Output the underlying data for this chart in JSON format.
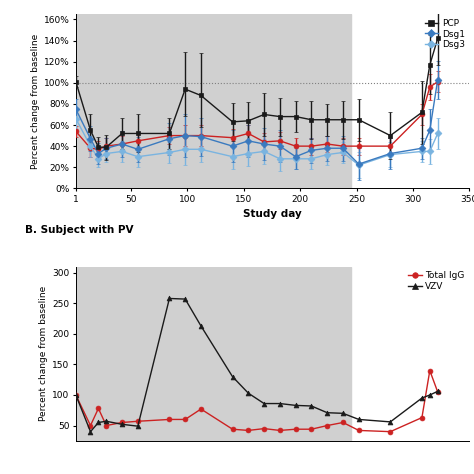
{
  "panel_A": {
    "ylabel": "Percent change from baseline",
    "xlabel": "Study day",
    "xlim": [
      1,
      350
    ],
    "ylim": [
      0,
      165
    ],
    "yticks": [
      0,
      20,
      40,
      60,
      80,
      100,
      120,
      140,
      160
    ],
    "ytick_labels": [
      "0%",
      "20%",
      "40%",
      "60%",
      "80%",
      "100%",
      "120%",
      "140%",
      "160%"
    ],
    "xticks": [
      1,
      50,
      100,
      150,
      200,
      250,
      300,
      350
    ],
    "gray_start": 1,
    "gray_end": 245,
    "hline_y": 100,
    "series": {
      "PCP": {
        "color": "#1a1a1a",
        "marker": "s",
        "x": [
          1,
          14,
          21,
          28,
          42,
          56,
          84,
          98,
          112,
          140,
          154,
          168,
          182,
          196,
          210,
          224,
          238,
          252,
          280,
          308,
          315,
          322
        ],
        "y": [
          101,
          55,
          39,
          39,
          52,
          52,
          52,
          94,
          88,
          63,
          64,
          70,
          68,
          68,
          65,
          65,
          65,
          65,
          50,
          72,
          117,
          142
        ],
        "yerr_lo": [
          5,
          15,
          10,
          12,
          15,
          18,
          15,
          25,
          30,
          18,
          18,
          20,
          18,
          15,
          18,
          15,
          18,
          20,
          22,
          30,
          28,
          25
        ],
        "yerr_hi": [
          5,
          15,
          10,
          12,
          15,
          18,
          15,
          35,
          40,
          18,
          18,
          20,
          18,
          15,
          18,
          15,
          18,
          20,
          22,
          30,
          28,
          25
        ]
      },
      "Dsg1": {
        "color": "#3a7abf",
        "marker": "D",
        "x": [
          1,
          14,
          21,
          28,
          42,
          56,
          84,
          98,
          112,
          140,
          154,
          168,
          182,
          196,
          210,
          224,
          238,
          252,
          280,
          308,
          315,
          322
        ],
        "y": [
          75,
          47,
          33,
          38,
          42,
          37,
          47,
          50,
          49,
          40,
          45,
          42,
          40,
          30,
          36,
          38,
          38,
          23,
          33,
          38,
          55,
          103
        ],
        "yerr_lo": [
          10,
          12,
          10,
          10,
          12,
          12,
          15,
          20,
          18,
          15,
          15,
          15,
          15,
          12,
          12,
          12,
          12,
          15,
          15,
          10,
          20,
          18
        ],
        "yerr_hi": [
          10,
          12,
          10,
          10,
          12,
          12,
          15,
          20,
          18,
          15,
          15,
          15,
          15,
          12,
          12,
          12,
          12,
          15,
          15,
          10,
          20,
          18
        ]
      },
      "Dsg3": {
        "color": "#7ab4e0",
        "marker": "D",
        "x": [
          1,
          14,
          21,
          28,
          42,
          56,
          84,
          98,
          112,
          140,
          154,
          168,
          182,
          196,
          210,
          224,
          238,
          252,
          280,
          308,
          315,
          322
        ],
        "y": [
          66,
          40,
          28,
          33,
          35,
          30,
          34,
          37,
          37,
          30,
          33,
          35,
          28,
          28,
          28,
          32,
          34,
          22,
          32,
          35,
          35,
          52
        ],
        "yerr_lo": [
          10,
          10,
          8,
          8,
          10,
          10,
          10,
          15,
          12,
          12,
          12,
          12,
          12,
          10,
          10,
          10,
          10,
          12,
          12,
          10,
          12,
          15
        ],
        "yerr_hi": [
          10,
          10,
          8,
          8,
          10,
          10,
          10,
          15,
          12,
          12,
          12,
          12,
          12,
          10,
          10,
          10,
          10,
          12,
          12,
          10,
          12,
          15
        ]
      },
      "Total_IgG": {
        "color": "#cc2222",
        "marker": "o",
        "x": [
          1,
          14,
          21,
          28,
          42,
          56,
          84,
          98,
          112,
          140,
          154,
          168,
          182,
          196,
          210,
          224,
          238,
          252,
          280,
          308,
          315,
          322
        ],
        "y": [
          54,
          38,
          37,
          40,
          42,
          45,
          50,
          50,
          50,
          48,
          52,
          44,
          45,
          40,
          40,
          42,
          40,
          40,
          40,
          70,
          96,
          101
        ],
        "yerr_lo": [
          5,
          8,
          8,
          8,
          8,
          8,
          8,
          10,
          10,
          8,
          8,
          8,
          8,
          8,
          8,
          8,
          8,
          8,
          8,
          10,
          12,
          10
        ],
        "yerr_hi": [
          5,
          8,
          8,
          8,
          8,
          8,
          8,
          10,
          10,
          8,
          8,
          8,
          8,
          8,
          8,
          8,
          8,
          8,
          8,
          10,
          12,
          10
        ]
      }
    },
    "legend": [
      {
        "label": "PCP",
        "color": "#1a1a1a",
        "marker": "s"
      },
      {
        "label": "Dsg1",
        "color": "#3a7abf",
        "marker": "D"
      },
      {
        "label": "Dsg3",
        "color": "#7ab4e0",
        "marker": "D"
      }
    ]
  },
  "panel_B": {
    "title": "B. Subject with PV",
    "ylabel": "Percent change from baseline",
    "xlim": [
      1,
      350
    ],
    "ylim": [
      25,
      310
    ],
    "yticks": [
      50,
      100,
      150,
      200,
      250,
      300
    ],
    "ytick_labels": [
      "50",
      "100",
      "150",
      "200",
      "250",
      "300"
    ],
    "gray_start": 1,
    "gray_end": 245,
    "series": {
      "Total_IgG": {
        "color": "#cc2222",
        "marker": "o",
        "x": [
          1,
          14,
          21,
          28,
          42,
          56,
          84,
          98,
          112,
          140,
          154,
          168,
          182,
          196,
          210,
          224,
          238,
          252,
          280,
          308,
          315,
          322
        ],
        "y": [
          100,
          50,
          78,
          50,
          55,
          57,
          60,
          60,
          77,
          44,
          42,
          45,
          42,
          44,
          44,
          50,
          55,
          42,
          40,
          63,
          140,
          105
        ]
      },
      "VZV": {
        "color": "#1a1a1a",
        "marker": "^",
        "x": [
          1,
          14,
          21,
          28,
          42,
          56,
          84,
          98,
          112,
          140,
          154,
          168,
          182,
          196,
          210,
          224,
          238,
          252,
          280,
          308,
          315,
          322
        ],
        "y": [
          100,
          40,
          55,
          57,
          52,
          49,
          258,
          257,
          213,
          130,
          103,
          86,
          86,
          83,
          82,
          71,
          70,
          60,
          56,
          95,
          100,
          106
        ]
      }
    },
    "legend": [
      {
        "label": "Total IgG",
        "color": "#cc2222",
        "marker": "o"
      },
      {
        "label": "VZV",
        "color": "#1a1a1a",
        "marker": "^"
      }
    ]
  }
}
